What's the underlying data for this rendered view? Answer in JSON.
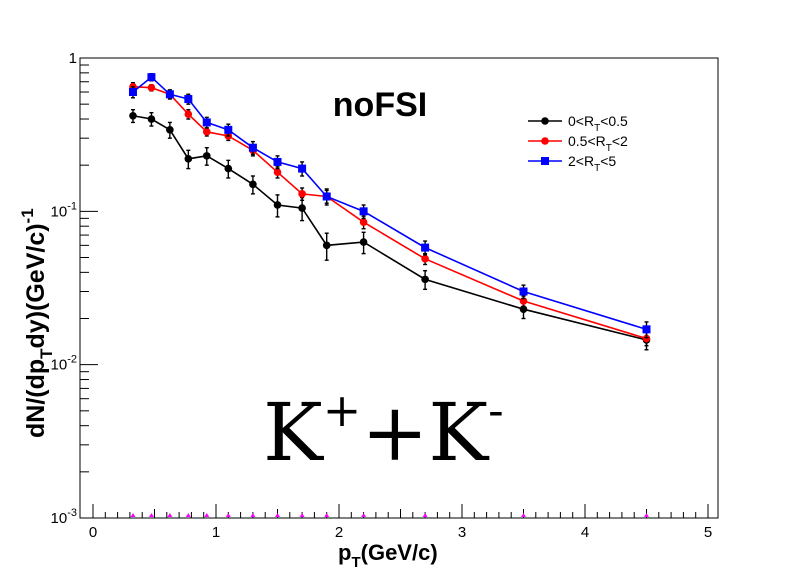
{
  "chart_data": {
    "type": "line",
    "title": "noFSI",
    "xlabel": {
      "main": "p",
      "sub": "T",
      "rest": "(GeV/c)"
    },
    "ylabel": {
      "p1": "dN/(dp",
      "sub": "T",
      "p2": "dy)(GeV/c)",
      "sup": "-1"
    },
    "big_label": {
      "k1": "K",
      "sup1": "+",
      "mid": "+K",
      "sup2": "-"
    },
    "xlim": [
      0,
      5
    ],
    "ylim": [
      0.001,
      1
    ],
    "yscale": "log",
    "grid": false,
    "legend_position": "top-right",
    "x_ticks": [
      {
        "value": 0,
        "label": "0"
      },
      {
        "value": 1,
        "label": "1"
      },
      {
        "value": 2,
        "label": "2"
      },
      {
        "value": 3,
        "label": "3"
      },
      {
        "value": 4,
        "label": "4"
      },
      {
        "value": 5,
        "label": "5"
      }
    ],
    "y_ticks": [
      {
        "value": 1,
        "label": "1",
        "exp": ""
      },
      {
        "value": 0.1,
        "label": "10",
        "exp": "-1"
      },
      {
        "value": 0.01,
        "label": "10",
        "exp": "-2"
      },
      {
        "value": 0.001,
        "label": "10",
        "exp": "-3"
      }
    ],
    "x": [
      0.325,
      0.475,
      0.625,
      0.775,
      0.925,
      1.1,
      1.3,
      1.5,
      1.7,
      1.9,
      2.2,
      2.7,
      3.5,
      4.5
    ],
    "series": [
      {
        "legend": {
          "pre": "0<R",
          "sub": "T",
          "post": "<0.5"
        },
        "color": "#000000",
        "marker": "circle",
        "values": [
          0.42,
          0.4,
          0.34,
          0.22,
          0.23,
          0.19,
          0.15,
          0.11,
          0.105,
          0.06,
          0.063,
          0.036,
          0.023,
          0.0145
        ],
        "errors": [
          0.04,
          0.04,
          0.04,
          0.03,
          0.03,
          0.025,
          0.02,
          0.018,
          0.018,
          0.012,
          0.01,
          0.005,
          0.003,
          0.002
        ]
      },
      {
        "legend": {
          "pre": "0.5<R",
          "sub": "T",
          "post": "<2"
        },
        "color": "#ff0000",
        "marker": "circle",
        "values": [
          0.65,
          0.64,
          0.58,
          0.43,
          0.33,
          0.31,
          0.25,
          0.18,
          0.13,
          0.125,
          0.085,
          0.049,
          0.026,
          0.0148
        ],
        "errors": [
          0.04,
          0.03,
          0.03,
          0.03,
          0.02,
          0.02,
          0.02,
          0.015,
          0.012,
          0.012,
          0.008,
          0.004,
          0.002,
          0.0015
        ]
      },
      {
        "legend": {
          "pre": "2<R",
          "sub": "T",
          "post": "<5"
        },
        "color": "#0000ff",
        "marker": "square",
        "values": [
          0.6,
          0.75,
          0.58,
          0.54,
          0.38,
          0.34,
          0.26,
          0.21,
          0.19,
          0.125,
          0.1,
          0.058,
          0.03,
          0.017
        ],
        "errors": [
          0.05,
          0.04,
          0.04,
          0.04,
          0.03,
          0.03,
          0.025,
          0.02,
          0.02,
          0.015,
          0.01,
          0.006,
          0.003,
          0.002
        ]
      }
    ],
    "bottom_markers_color": "#ff00ff"
  }
}
